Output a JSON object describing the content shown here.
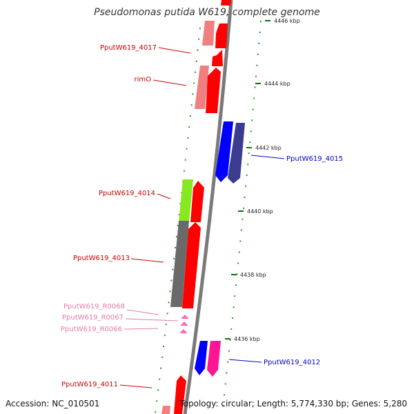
{
  "title": "Pseudomonas putida W619, complete genome",
  "footer": {
    "accession": "Accession: NC_010501",
    "topology": "Topology: circular; Length: 5,774,330 bp; Genes: 5,280"
  },
  "colors": {
    "backbone": "#7a7a7a",
    "forward_cds": "#ff0000",
    "reverse_cds": "#0000ff",
    "rna": "#ff69b4",
    "tick": "#007a00",
    "label_forward": "#cc0000",
    "label_reverse": "#0000cc",
    "label_rna": "#e87aa8"
  },
  "ticks": [
    {
      "label": "4446 kbp"
    },
    {
      "label": "4444 kbp"
    },
    {
      "label": "4442 kbp"
    },
    {
      "label": "4440 kbp"
    },
    {
      "label": "4438 kbp"
    },
    {
      "label": "4436 kbp"
    }
  ],
  "gene_labels": [
    {
      "text": "PputW619_4017",
      "kind": "forward"
    },
    {
      "text": "rimO",
      "kind": "forward"
    },
    {
      "text": "PputW619_4015",
      "kind": "reverse"
    },
    {
      "text": "PputW619_4014",
      "kind": "forward"
    },
    {
      "text": "PputW619_4013",
      "kind": "forward"
    },
    {
      "text": "PputW619_R0068",
      "kind": "rna"
    },
    {
      "text": "PputW619_R0067",
      "kind": "rna"
    },
    {
      "text": "PputW619_R0066",
      "kind": "rna"
    },
    {
      "text": "PputW619_4012",
      "kind": "reverse"
    },
    {
      "text": "PputW619_4011",
      "kind": "forward"
    }
  ]
}
